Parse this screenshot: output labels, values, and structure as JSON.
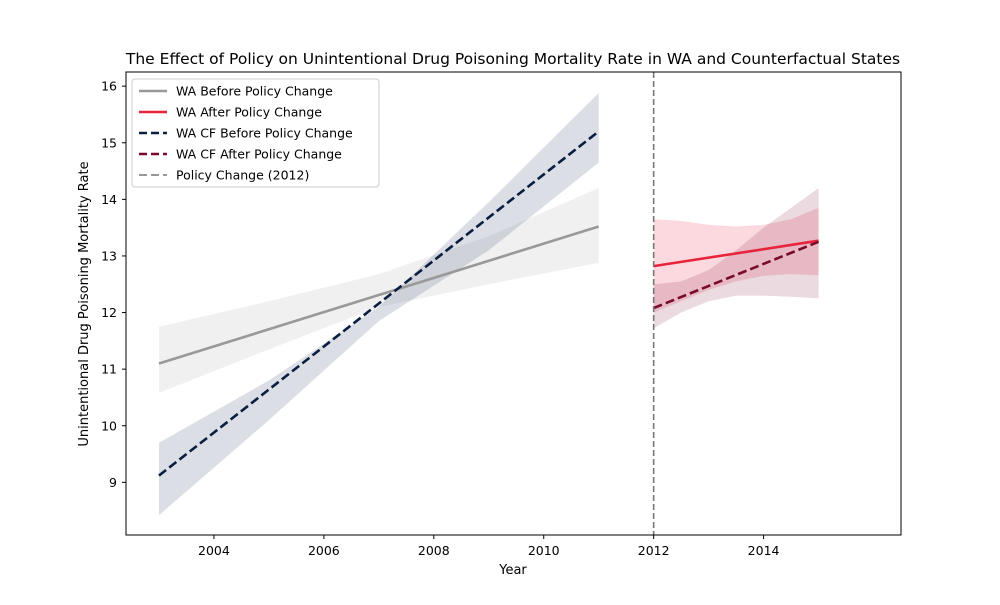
{
  "chart_data": {
    "type": "line",
    "title": "The Effect of Policy on Unintentional Drug Poisoning Mortality Rate in WA and Counterfactual States",
    "xlabel": "Year",
    "ylabel": "Unintentional Drug Poisoning Mortality Rate",
    "xlim": [
      2002.4,
      2016.5
    ],
    "ylim": [
      8.07,
      16.25
    ],
    "xticks": [
      2004,
      2006,
      2008,
      2010,
      2012,
      2014
    ],
    "yticks": [
      9,
      10,
      11,
      12,
      13,
      14,
      15,
      16
    ],
    "grid": false,
    "legend_position": "top-left",
    "series": [
      {
        "name": "WA Before Policy Change",
        "color": "#999999",
        "dash": "solid",
        "band_color": "#999999",
        "band_opacity": 0.15,
        "points": [
          [
            2003,
            11.1
          ],
          [
            2011,
            13.52
          ]
        ],
        "band_upper": [
          [
            2003,
            11.75
          ],
          [
            2005,
            12.2
          ],
          [
            2007,
            12.68
          ],
          [
            2009,
            13.35
          ],
          [
            2011,
            14.2
          ]
        ],
        "band_lower": [
          [
            2003,
            10.58
          ],
          [
            2005,
            11.35
          ],
          [
            2007,
            12.1
          ],
          [
            2009,
            12.5
          ],
          [
            2011,
            12.88
          ]
        ]
      },
      {
        "name": "WA After Policy Change",
        "color": "#e8243c",
        "dash": "solid",
        "band_color": "#f5a0ac",
        "band_opacity": 0.4,
        "points": [
          [
            2012,
            12.82
          ],
          [
            2015,
            13.27
          ]
        ],
        "band_upper": [
          [
            2012,
            13.65
          ],
          [
            2012.5,
            13.62
          ],
          [
            2013,
            13.55
          ],
          [
            2013.5,
            13.52
          ],
          [
            2014,
            13.55
          ],
          [
            2014.5,
            13.65
          ],
          [
            2015,
            13.85
          ]
        ],
        "band_lower": [
          [
            2012,
            12.0
          ],
          [
            2012.5,
            12.2
          ],
          [
            2013,
            12.4
          ],
          [
            2013.5,
            12.55
          ],
          [
            2014,
            12.65
          ],
          [
            2014.5,
            12.68
          ],
          [
            2015,
            12.66
          ]
        ]
      },
      {
        "name": "WA CF Before Policy Change",
        "color": "#0a1e40",
        "dash": "dashed",
        "band_color": "#4a5a78",
        "band_opacity": 0.2,
        "points": [
          [
            2003,
            9.12
          ],
          [
            2011,
            15.2
          ]
        ],
        "band_upper": [
          [
            2003,
            9.7
          ],
          [
            2005,
            10.8
          ],
          [
            2007,
            12.1
          ],
          [
            2009,
            13.95
          ],
          [
            2011,
            15.88
          ]
        ],
        "band_lower": [
          [
            2003,
            8.42
          ],
          [
            2005,
            10.1
          ],
          [
            2007,
            11.85
          ],
          [
            2009,
            13.1
          ],
          [
            2011,
            14.65
          ]
        ]
      },
      {
        "name": "WA CF After Policy Change",
        "color": "#7a0a2c",
        "dash": "dashed",
        "band_color": "#7a0a2c",
        "band_opacity": 0.15,
        "points": [
          [
            2012,
            12.08
          ],
          [
            2015,
            13.25
          ]
        ],
        "band_upper": [
          [
            2012,
            12.5
          ],
          [
            2012.5,
            12.55
          ],
          [
            2013,
            12.75
          ],
          [
            2013.5,
            13.1
          ],
          [
            2014,
            13.5
          ],
          [
            2014.5,
            13.85
          ],
          [
            2015,
            14.2
          ]
        ],
        "band_lower": [
          [
            2012,
            11.72
          ],
          [
            2012.5,
            12.0
          ],
          [
            2013,
            12.2
          ],
          [
            2013.5,
            12.3
          ],
          [
            2014,
            12.3
          ],
          [
            2014.5,
            12.28
          ],
          [
            2015,
            12.25
          ]
        ]
      }
    ],
    "reference_lines": [
      {
        "name": "Policy Change (2012)",
        "x": 2012,
        "color": "#777777",
        "dash": "dashed"
      }
    ]
  }
}
